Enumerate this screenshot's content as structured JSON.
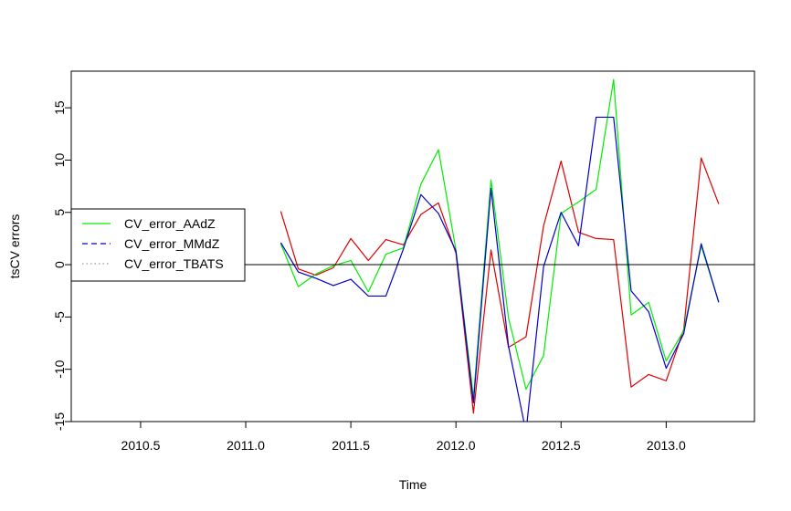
{
  "chart_data": {
    "type": "line",
    "title": "",
    "xlabel": "Time",
    "ylabel": "tsCV errors",
    "xlim": [
      2010.17,
      2013.42
    ],
    "ylim": [
      -15,
      18.5
    ],
    "x_ticks": [
      2010.5,
      2011.0,
      2011.5,
      2012.0,
      2012.5,
      2013.0
    ],
    "x_tick_labels": [
      "2010.5",
      "2011.0",
      "2011.5",
      "2012.0",
      "2012.5",
      "2013.0"
    ],
    "y_ticks": [
      -15,
      -10,
      -5,
      0,
      5,
      10,
      15
    ],
    "y_tick_labels": [
      "-15",
      "-10",
      "-5",
      "0",
      "5",
      "10",
      "15"
    ],
    "reference_line_y": 0,
    "x": [
      2011.1667,
      2011.25,
      2011.3333,
      2011.4167,
      2011.5,
      2011.5833,
      2011.6667,
      2011.75,
      2011.8333,
      2011.9167,
      2012.0,
      2012.0833,
      2012.1667,
      2012.25,
      2012.3333,
      2012.4167,
      2012.5,
      2012.5833,
      2012.6667,
      2012.75,
      2012.8333,
      2012.9167,
      2013.0,
      2013.0833,
      2013.1667,
      2013.25
    ],
    "series": [
      {
        "name": "CV_error_AAdZ",
        "color": "#00ee00",
        "dash": "solid",
        "values": [
          2.0,
          -2.1,
          -0.9,
          -0.1,
          0.4,
          -2.6,
          1.0,
          1.6,
          7.7,
          11.0,
          1.4,
          -12.7,
          8.1,
          -5.1,
          -11.9,
          -8.7,
          4.9,
          6.0,
          7.2,
          17.7,
          -4.8,
          -3.6,
          -9.2,
          -6.3,
          1.8,
          -3.6
        ]
      },
      {
        "name": "CV_error_MMdZ",
        "color": "#0000cc",
        "dash": "dashed",
        "values": [
          2.1,
          -0.7,
          -1.3,
          -2.0,
          -1.4,
          -3.0,
          -3.0,
          1.5,
          6.7,
          4.9,
          1.3,
          -13.2,
          7.3,
          -7.8,
          -16.0,
          -0.2,
          5.0,
          1.8,
          14.1,
          14.1,
          -2.5,
          -4.5,
          -9.9,
          -6.6,
          2.0,
          -3.6
        ]
      },
      {
        "name": "CV_error_TBATS",
        "color": "#dd0000",
        "dash": "dotted",
        "values": [
          5.1,
          -0.4,
          -1.0,
          -0.3,
          2.5,
          0.4,
          2.4,
          1.9,
          4.8,
          5.9,
          1.1,
          -14.2,
          1.4,
          -7.9,
          -6.9,
          3.7,
          9.9,
          3.1,
          2.5,
          2.4,
          -11.7,
          -10.5,
          -11.1,
          -6.2,
          10.2,
          5.8
        ]
      }
    ],
    "legend": {
      "placement": "left",
      "entries": [
        "CV_error_AAdZ",
        "CV_error_MMdZ",
        "CV_error_TBATS"
      ]
    }
  }
}
